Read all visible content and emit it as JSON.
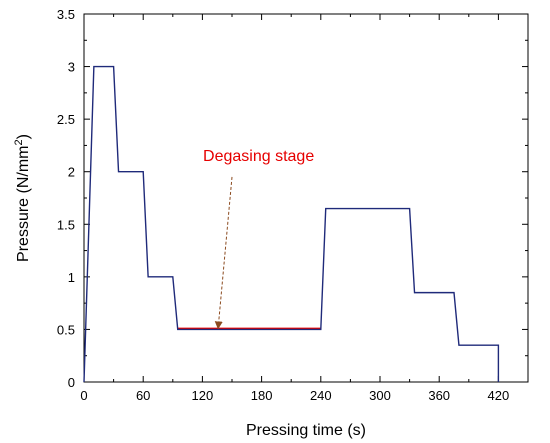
{
  "chart_data": {
    "type": "line",
    "xlabel": "Pressing time (s)",
    "ylabel": "Pressure (N/mm",
    "ylabel_superscript": "2",
    "ylabel_suffix": ")",
    "xlim": [
      0,
      450
    ],
    "ylim": [
      0,
      3.5
    ],
    "xticks": [
      0,
      60,
      120,
      180,
      240,
      300,
      360,
      420
    ],
    "yticks": [
      0,
      0.5,
      1,
      1.5,
      2,
      2.5,
      3,
      3.5
    ],
    "ytick_labels": [
      "0",
      "0.5",
      "1",
      "1.5",
      "2",
      "2.5",
      "3",
      "3.5"
    ],
    "grid": false,
    "series": [
      {
        "color": "#1f2a7a",
        "x": [
          0,
          10,
          30,
          35,
          60,
          65,
          90,
          95,
          240,
          245,
          330,
          335,
          375,
          380,
          420,
          420
        ],
        "y": [
          0,
          3,
          3,
          2,
          2,
          1,
          1,
          0.5,
          0.5,
          1.65,
          1.65,
          0.85,
          0.85,
          0.35,
          0.35,
          0
        ]
      }
    ],
    "highlight": {
      "color": "#e60000",
      "x": [
        95,
        240
      ],
      "y": [
        0.5,
        0.5
      ]
    },
    "annotation": {
      "text": "Degasing stage",
      "color": "#e60000",
      "arrow_color": "#8b4a1f",
      "text_x": 177,
      "text_y": 2.1,
      "arrow_from": [
        150,
        1.95
      ],
      "arrow_to": [
        136,
        0.5
      ]
    }
  }
}
